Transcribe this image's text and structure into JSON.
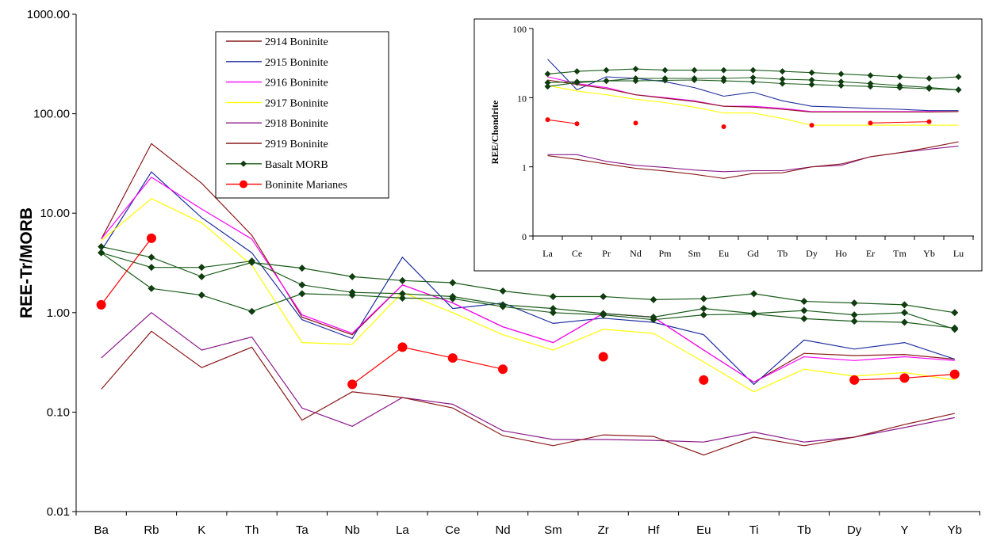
{
  "chart_data": [
    {
      "type": "line",
      "scale": "log",
      "ylabel": "REE-Tr/MORB",
      "xlabel": "",
      "ylim": [
        0.01,
        1000
      ],
      "y_tick_labels": [
        "1000.00",
        "100.00",
        "10.00",
        "1.00",
        "0.10",
        "0.01"
      ],
      "y_ticks": [
        1000,
        100,
        10,
        1,
        0.1,
        0.01
      ],
      "grid": false,
      "legend_placement": "top-center",
      "categories": [
        "Ba",
        "Rb",
        "K",
        "Th",
        "Ta",
        "Nb",
        "La",
        "Ce",
        "Nd",
        "Sm",
        "Zr",
        "Hf",
        "Eu",
        "Ti",
        "Tb",
        "Dy",
        "Y",
        "Yb"
      ],
      "series": [
        {
          "name": "2914 Boninite",
          "color": "#8b1a1a",
          "marker": "none",
          "values": [
            5.5,
            50,
            20,
            6,
            0.9,
            0.6,
            1.9,
            1.25,
            0.72,
            0.5,
            0.98,
            0.9,
            0.42,
            0.2,
            0.39,
            0.37,
            0.38,
            0.34
          ]
        },
        {
          "name": "2915 Boninite",
          "color": "#1f2f9f",
          "marker": "none",
          "values": [
            4.2,
            26,
            9,
            4,
            0.85,
            0.55,
            3.6,
            1.1,
            1.25,
            0.78,
            0.88,
            0.8,
            0.6,
            0.19,
            0.53,
            0.43,
            0.5,
            0.34
          ]
        },
        {
          "name": "2916 Boninite",
          "color": "#ff00ff",
          "marker": "none",
          "values": [
            5.5,
            23,
            11,
            5.5,
            0.95,
            0.62,
            1.9,
            1.25,
            0.72,
            0.5,
            0.98,
            0.9,
            0.42,
            0.2,
            0.36,
            0.33,
            0.36,
            0.33
          ]
        },
        {
          "name": "2917 Boninite",
          "color": "#ffff00",
          "marker": "none",
          "values": [
            5.3,
            14,
            8,
            3,
            0.5,
            0.48,
            1.6,
            1.0,
            0.6,
            0.42,
            0.68,
            0.62,
            0.32,
            0.16,
            0.27,
            0.23,
            0.25,
            0.21
          ]
        },
        {
          "name": "2918 Boninite",
          "color": "#8b1a8b",
          "marker": "none",
          "values": [
            0.35,
            1.0,
            0.42,
            0.57,
            0.11,
            0.072,
            0.14,
            0.12,
            0.065,
            0.053,
            0.053,
            0.052,
            0.05,
            0.063,
            0.05,
            0.056,
            0.07,
            0.088
          ]
        },
        {
          "name": "2919 Boninite",
          "color": "#8b1a1a",
          "marker": "none",
          "values": [
            0.17,
            0.65,
            0.28,
            0.45,
            0.083,
            0.16,
            0.14,
            0.11,
            0.058,
            0.046,
            0.059,
            0.057,
            0.037,
            0.056,
            0.046,
            0.056,
            0.075,
            0.097
          ]
        },
        {
          "name": "Basalt MORB",
          "color": "#1a5c1a",
          "marker": "diamond",
          "values": [
            4.6,
            3.6,
            2.3,
            3.2,
            2.8,
            2.3,
            2.1,
            2.0,
            1.65,
            1.45,
            1.45,
            1.35,
            1.38,
            1.55,
            1.3,
            1.25,
            1.2,
            1.0
          ]
        },
        {
          "name": "",
          "color": "#1a5c1a",
          "marker": "diamond",
          "values": [
            4.0,
            2.85,
            2.85,
            3.3,
            1.9,
            1.6,
            1.55,
            1.45,
            1.2,
            1.1,
            0.98,
            0.9,
            1.1,
            0.98,
            1.05,
            0.95,
            1.0,
            0.68
          ]
        },
        {
          "name": "",
          "color": "#1a5c1a",
          "marker": "diamond",
          "values": [
            4.0,
            1.75,
            1.5,
            1.03,
            1.55,
            1.5,
            1.4,
            1.38,
            1.15,
            1.0,
            0.95,
            0.85,
            0.95,
            0.97,
            0.87,
            0.82,
            0.8,
            0.7
          ]
        },
        {
          "name": "Boninite Marianes",
          "color": "#ff0000",
          "marker": "circle",
          "values": [
            1.2,
            5.6,
            null,
            null,
            null,
            0.19,
            0.45,
            0.35,
            0.27,
            null,
            0.36,
            null,
            0.21,
            null,
            null,
            0.21,
            0.22,
            0.24
          ],
          "connected": [
            [
              0,
              1
            ],
            [
              5,
              6
            ],
            [
              6,
              7
            ],
            [
              7,
              8
            ],
            [
              15,
              16
            ],
            [
              16,
              17
            ]
          ]
        }
      ]
    },
    {
      "type": "line",
      "scale": "log",
      "ylabel": "REE/Chondrite",
      "ylim": [
        0.1,
        100
      ],
      "y_tick_labels": [
        "100",
        "10",
        "1",
        "0"
      ],
      "y_ticks": [
        100,
        10,
        1,
        0.1
      ],
      "grid": false,
      "placement": "inset top-right",
      "categories": [
        "La",
        "Ce",
        "Pr",
        "Nd",
        "Pm",
        "Sm",
        "Eu",
        "Gd",
        "Tb",
        "Dy",
        "Ho",
        "Er",
        "Tm",
        "Yb",
        "Lu"
      ],
      "series": [
        {
          "color": "#1f2f9f",
          "marker": "none",
          "values": [
            36,
            13,
            20,
            19,
            17,
            14,
            10.5,
            12,
            9,
            7.5,
            7.3,
            7,
            6.8,
            6.5,
            6.5
          ]
        },
        {
          "color": "#ff00ff",
          "marker": "none",
          "values": [
            20,
            16,
            14,
            11,
            10,
            9,
            7.5,
            7.5,
            7,
            6.3,
            6.3,
            6.3,
            6.3,
            6.3,
            6.3
          ]
        },
        {
          "color": "#8b1a1a",
          "marker": "none",
          "values": [
            18,
            15.5,
            13.5,
            11,
            9.8,
            8.8,
            7.5,
            7.3,
            6.8,
            6.2,
            6.2,
            6.2,
            6.2,
            6.2,
            6.3
          ]
        },
        {
          "color": "#ffff00",
          "marker": "none",
          "values": [
            15,
            12.5,
            11,
            9.5,
            8.5,
            7.3,
            6,
            6,
            5,
            4,
            4,
            4,
            4,
            4,
            4
          ]
        },
        {
          "color": "#8b1a8b",
          "marker": "none",
          "values": [
            1.5,
            1.5,
            1.2,
            1.05,
            0.98,
            0.9,
            0.85,
            0.88,
            0.88,
            1.0,
            1.05,
            1.4,
            1.6,
            1.8,
            2.0
          ]
        },
        {
          "color": "#8b1a1a",
          "marker": "none",
          "values": [
            1.45,
            1.28,
            1.1,
            0.95,
            0.87,
            0.78,
            0.68,
            0.8,
            0.82,
            1.0,
            1.1,
            1.4,
            1.6,
            1.9,
            2.3
          ]
        },
        {
          "color": "#1a5c1a",
          "marker": "diamond",
          "values": [
            22,
            24,
            25,
            26,
            25,
            25,
            25,
            25,
            24,
            23,
            22,
            21,
            20,
            19,
            20
          ]
        },
        {
          "color": "#1a5c1a",
          "marker": "diamond",
          "values": [
            16.5,
            17,
            17.5,
            19,
            19,
            19,
            19,
            19.5,
            18.5,
            18,
            17,
            16,
            15,
            14,
            13
          ]
        },
        {
          "color": "#1a5c1a",
          "marker": "diamond",
          "values": [
            14.5,
            16.5,
            17.5,
            17.5,
            17.8,
            18,
            17.5,
            17,
            16,
            15.5,
            15,
            14.5,
            14,
            13.5,
            13
          ]
        },
        {
          "color": "#ff0000",
          "marker": "circle",
          "values": [
            4.8,
            4.2,
            null,
            4.3,
            null,
            null,
            3.8,
            null,
            null,
            4.0,
            null,
            4.3,
            null,
            4.5,
            null
          ],
          "connected": [
            [
              0,
              1
            ],
            [
              11,
              13
            ]
          ]
        }
      ]
    }
  ]
}
